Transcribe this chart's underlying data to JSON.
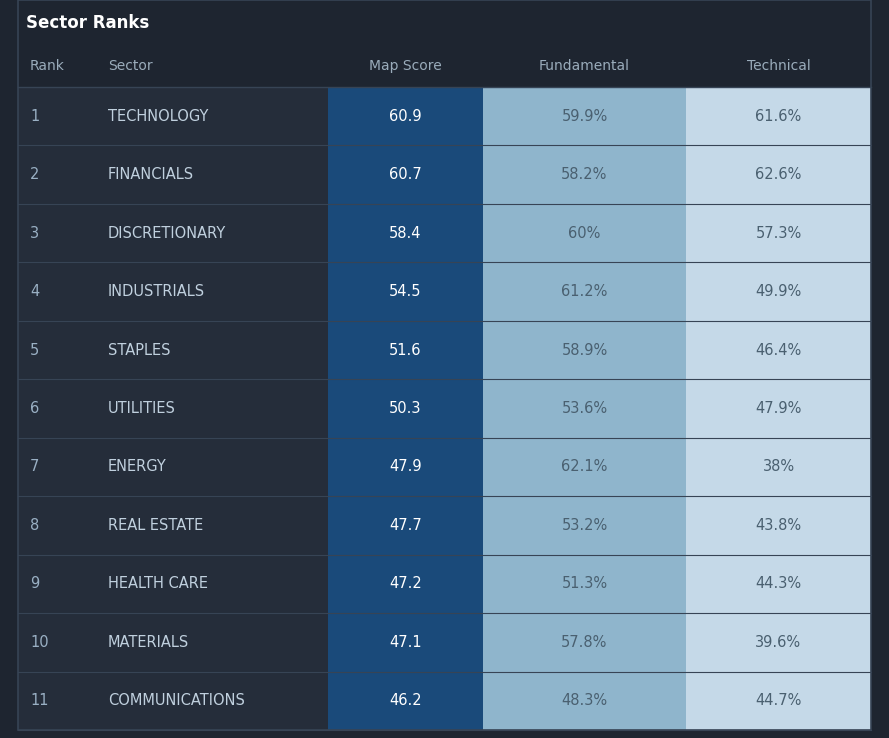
{
  "title": "Sector Ranks",
  "columns": [
    "Rank",
    "Sector",
    "Map Score",
    "Fundamental",
    "Technical"
  ],
  "rows": [
    [
      "1",
      "TECHNOLOGY",
      "60.9",
      "59.9%",
      "61.6%"
    ],
    [
      "2",
      "FINANCIALS",
      "60.7",
      "58.2%",
      "62.6%"
    ],
    [
      "3",
      "DISCRETIONARY",
      "58.4",
      "60%",
      "57.3%"
    ],
    [
      "4",
      "INDUSTRIALS",
      "54.5",
      "61.2%",
      "49.9%"
    ],
    [
      "5",
      "STAPLES",
      "51.6",
      "58.9%",
      "46.4%"
    ],
    [
      "6",
      "UTILITIES",
      "50.3",
      "53.6%",
      "47.9%"
    ],
    [
      "7",
      "ENERGY",
      "47.9",
      "62.1%",
      "38%"
    ],
    [
      "8",
      "REAL ESTATE",
      "47.7",
      "53.2%",
      "43.8%"
    ],
    [
      "9",
      "HEALTH CARE",
      "47.2",
      "51.3%",
      "44.3%"
    ],
    [
      "10",
      "MATERIALS",
      "47.1",
      "57.8%",
      "39.6%"
    ],
    [
      "11",
      "COMMUNICATIONS",
      "46.2",
      "48.3%",
      "44.7%"
    ]
  ],
  "bg_color": "#1e2530",
  "header_bg": "#1e2530",
  "row_bg": "#252d3a",
  "map_score_bg": "#1a4a7a",
  "fundamental_bg": "#8fb5cc",
  "technical_bg": "#c5d9e8",
  "title_color": "#ffffff",
  "header_color": "#9aacbb",
  "rank_color": "#9ab0c4",
  "sector_color": "#c0d0de",
  "map_score_color": "#ffffff",
  "fundamental_color": "#4a6070",
  "technical_color": "#4a6070",
  "divider_color": "#374455",
  "title_fontsize": 12,
  "header_fontsize": 10,
  "cell_fontsize": 10.5
}
